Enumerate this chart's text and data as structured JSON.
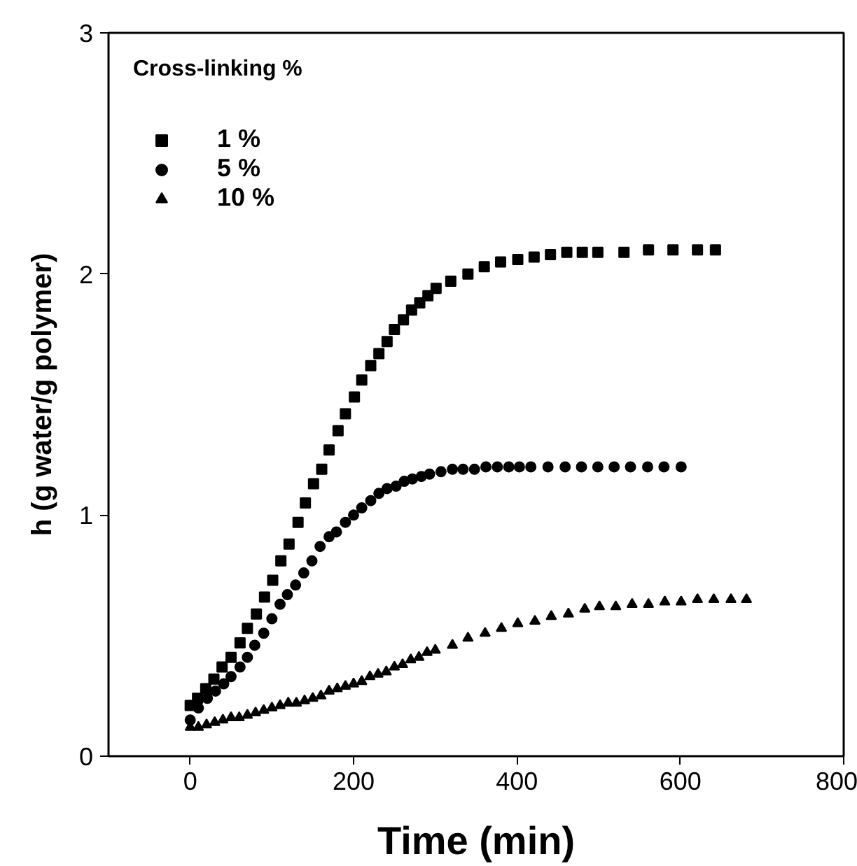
{
  "chart_data": {
    "type": "scatter",
    "xlabel": "Time (min)",
    "ylabel": "h (g water/g polymer)",
    "legend_title": "Cross-linking %",
    "legend": "top left",
    "grid": false,
    "xlim": [
      -100,
      800
    ],
    "xticks": [
      0,
      200,
      400,
      600,
      800
    ],
    "ylim": [
      0,
      3
    ],
    "yticks": [
      0,
      1,
      2,
      3
    ],
    "series": [
      {
        "name": "1 %",
        "color": "#000000",
        "marker": "square",
        "x": [
          0,
          9,
          19,
          29,
          39,
          50,
          61,
          70,
          81,
          91,
          101,
          111,
          121,
          132,
          141,
          151,
          161,
          170,
          181,
          190,
          201,
          210,
          221,
          231,
          241,
          250,
          261,
          271,
          281,
          291,
          301,
          319,
          340,
          360,
          380,
          401,
          421,
          441,
          461,
          480,
          499,
          531,
          561,
          591,
          621,
          643
        ],
        "values": [
          0.21,
          0.24,
          0.28,
          0.32,
          0.37,
          0.41,
          0.47,
          0.53,
          0.59,
          0.66,
          0.73,
          0.81,
          0.88,
          0.97,
          1.05,
          1.13,
          1.19,
          1.27,
          1.35,
          1.42,
          1.49,
          1.56,
          1.62,
          1.67,
          1.72,
          1.77,
          1.81,
          1.85,
          1.88,
          1.91,
          1.94,
          1.97,
          2.0,
          2.03,
          2.05,
          2.06,
          2.07,
          2.08,
          2.09,
          2.09,
          2.09,
          2.09,
          2.1,
          2.1,
          2.1,
          2.1
        ]
      },
      {
        "name": "5 %",
        "color": "#000000",
        "marker": "circle",
        "x": [
          0,
          10,
          21,
          31,
          41,
          50,
          61,
          70,
          79,
          90,
          100,
          110,
          119,
          129,
          139,
          149,
          159,
          170,
          179,
          190,
          200,
          210,
          221,
          231,
          241,
          252,
          262,
          272,
          283,
          293,
          307,
          321,
          334,
          348,
          362,
          376,
          390,
          403,
          417,
          438,
          459,
          479,
          499,
          519,
          539,
          560,
          580,
          601
        ],
        "values": [
          0.15,
          0.2,
          0.24,
          0.27,
          0.3,
          0.33,
          0.37,
          0.41,
          0.46,
          0.51,
          0.57,
          0.63,
          0.67,
          0.71,
          0.76,
          0.81,
          0.87,
          0.91,
          0.93,
          0.97,
          1.0,
          1.03,
          1.06,
          1.09,
          1.11,
          1.12,
          1.14,
          1.15,
          1.16,
          1.17,
          1.18,
          1.19,
          1.19,
          1.19,
          1.2,
          1.2,
          1.2,
          1.2,
          1.2,
          1.2,
          1.2,
          1.2,
          1.2,
          1.2,
          1.2,
          1.2,
          1.2,
          1.2
        ]
      },
      {
        "name": "10 %",
        "color": "#000000",
        "marker": "triangle",
        "x": [
          0,
          10,
          20,
          30,
          40,
          50,
          60,
          70,
          80,
          90,
          100,
          110,
          120,
          130,
          140,
          150,
          160,
          170,
          180,
          190,
          200,
          210,
          220,
          230,
          240,
          250,
          260,
          270,
          280,
          290,
          300,
          321,
          340,
          361,
          381,
          401,
          422,
          442,
          463,
          483,
          501,
          521,
          541,
          561,
          581,
          601,
          621,
          641,
          662,
          681
        ],
        "values": [
          0.12,
          0.12,
          0.13,
          0.14,
          0.15,
          0.16,
          0.16,
          0.17,
          0.18,
          0.19,
          0.2,
          0.21,
          0.22,
          0.22,
          0.23,
          0.24,
          0.25,
          0.27,
          0.28,
          0.29,
          0.3,
          0.31,
          0.33,
          0.34,
          0.35,
          0.37,
          0.38,
          0.4,
          0.41,
          0.43,
          0.44,
          0.46,
          0.49,
          0.51,
          0.53,
          0.55,
          0.56,
          0.58,
          0.59,
          0.61,
          0.62,
          0.62,
          0.63,
          0.63,
          0.64,
          0.64,
          0.65,
          0.65,
          0.65,
          0.65
        ]
      }
    ]
  }
}
